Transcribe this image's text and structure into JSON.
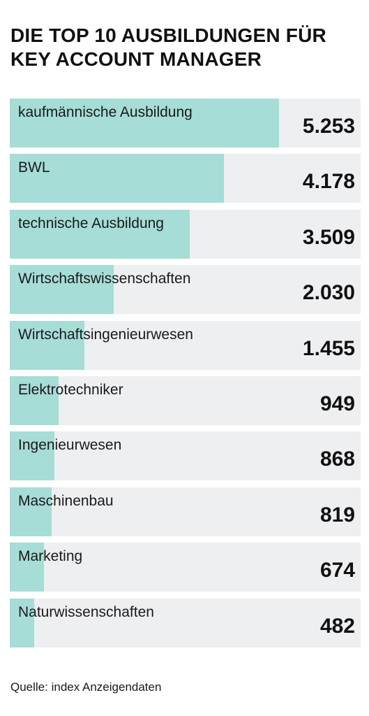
{
  "title_lines": [
    "DIE TOP 10 AUSBILDUNGEN FÜR",
    "KEY ACCOUNT MANAGER"
  ],
  "source": "Quelle: index Anzeigendaten",
  "colors": {
    "bar": "#a6ddd6",
    "track": "#eeeff1",
    "text": "#111111"
  },
  "chart_data": {
    "type": "bar",
    "orientation": "horizontal",
    "title": "DIE TOP 10 AUSBILDUNGEN FÜR KEY ACCOUNT MANAGER",
    "categories": [
      "kaufmännische Ausbildung",
      "BWL",
      "technische Ausbildung",
      "Wirtschaftswissenschaften",
      "Wirtschaftsingenieurwesen",
      "Elektrotechniker",
      "Ingenieurwesen",
      "Maschinenbau",
      "Marketing",
      "Naturwissenschaften"
    ],
    "values": [
      5253,
      4178,
      3509,
      2030,
      1455,
      949,
      868,
      819,
      674,
      482
    ],
    "value_labels": [
      "5.253",
      "4.178",
      "3.509",
      "2.030",
      "1.455",
      "949",
      "868",
      "819",
      "674",
      "482"
    ],
    "xlim": [
      0,
      6850
    ],
    "grid": false,
    "legend": "none"
  }
}
